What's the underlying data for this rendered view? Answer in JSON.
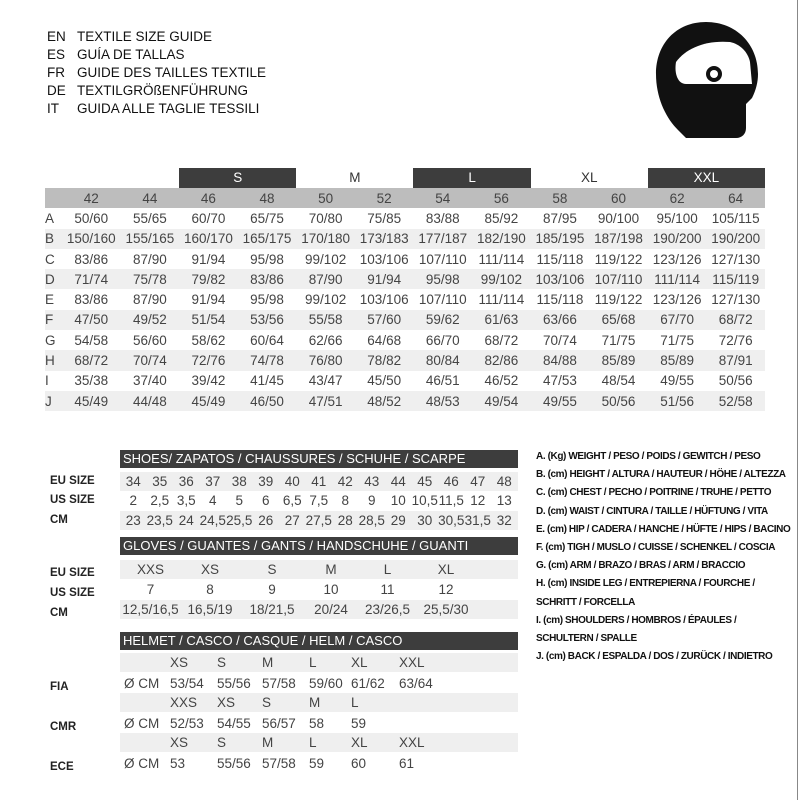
{
  "titles": [
    {
      "lang": "EN",
      "text": "TEXTILE SIZE GUIDE"
    },
    {
      "lang": "ES",
      "text": "GUÍA DE TALLAS"
    },
    {
      "lang": "FR",
      "text": "GUIDE DES TAILLES TEXTILE"
    },
    {
      "lang": "DE",
      "text": "TEXTILGRÖßENFÜHRUNG"
    },
    {
      "lang": "IT",
      "text": "GUIDA ALLE TAGLIE TESSILI"
    }
  ],
  "icon": "helmet-icon",
  "textile": {
    "groups": [
      "S",
      "M",
      "L",
      "XL",
      "XXL"
    ],
    "sizes": [
      "42",
      "44",
      "46",
      "48",
      "50",
      "52",
      "54",
      "56",
      "58",
      "60",
      "62",
      "64"
    ],
    "rows": [
      {
        "k": "A",
        "v": [
          "50/60",
          "55/65",
          "60/70",
          "65/75",
          "70/80",
          "75/85",
          "83/88",
          "85/92",
          "87/95",
          "90/100",
          "95/100",
          "105/115"
        ]
      },
      {
        "k": "B",
        "v": [
          "150/160",
          "155/165",
          "160/170",
          "165/175",
          "170/180",
          "173/183",
          "177/187",
          "182/190",
          "185/195",
          "187/198",
          "190/200",
          "190/200"
        ]
      },
      {
        "k": "C",
        "v": [
          "83/86",
          "87/90",
          "91/94",
          "95/98",
          "99/102",
          "103/106",
          "107/110",
          "111/114",
          "115/118",
          "119/122",
          "123/126",
          "127/130"
        ]
      },
      {
        "k": "D",
        "v": [
          "71/74",
          "75/78",
          "79/82",
          "83/86",
          "87/90",
          "91/94",
          "95/98",
          "99/102",
          "103/106",
          "107/110",
          "111/114",
          "115/119"
        ]
      },
      {
        "k": "E",
        "v": [
          "83/86",
          "87/90",
          "91/94",
          "95/98",
          "99/102",
          "103/106",
          "107/110",
          "111/114",
          "115/118",
          "119/122",
          "123/126",
          "127/130"
        ]
      },
      {
        "k": "F",
        "v": [
          "47/50",
          "49/52",
          "51/54",
          "53/56",
          "55/58",
          "57/60",
          "59/62",
          "61/63",
          "63/66",
          "65/68",
          "67/70",
          "68/72"
        ]
      },
      {
        "k": "G",
        "v": [
          "54/58",
          "56/60",
          "58/62",
          "60/64",
          "62/66",
          "64/68",
          "66/70",
          "68/72",
          "70/74",
          "71/75",
          "71/75",
          "72/76"
        ]
      },
      {
        "k": "H",
        "v": [
          "68/72",
          "70/74",
          "72/76",
          "74/78",
          "76/80",
          "78/82",
          "80/84",
          "82/86",
          "84/88",
          "85/89",
          "85/89",
          "87/91"
        ]
      },
      {
        "k": "I",
        "v": [
          "35/38",
          "37/40",
          "39/42",
          "41/45",
          "43/47",
          "45/50",
          "46/51",
          "46/52",
          "47/53",
          "48/54",
          "49/55",
          "50/56"
        ]
      },
      {
        "k": "J",
        "v": [
          "45/49",
          "44/48",
          "45/49",
          "46/50",
          "47/51",
          "48/52",
          "48/53",
          "49/54",
          "49/55",
          "50/56",
          "51/56",
          "52/58"
        ]
      }
    ]
  },
  "shoes": {
    "title": "SHOES/ ZAPATOS / CHAUSSURES / SCHUHE / SCARPE",
    "rows": [
      {
        "label": "EU SIZE",
        "v": [
          "34",
          "35",
          "36",
          "37",
          "38",
          "39",
          "40",
          "41",
          "42",
          "43",
          "44",
          "45",
          "46",
          "47",
          "48"
        ]
      },
      {
        "label": "US SIZE",
        "v": [
          "2",
          "2,5",
          "3,5",
          "4",
          "5",
          "6",
          "6,5",
          "7,5",
          "8",
          "9",
          "10",
          "10,5",
          "11,5",
          "12",
          "13"
        ]
      },
      {
        "label": "CM",
        "v": [
          "23",
          "23,5",
          "24",
          "24,5",
          "25,5",
          "26",
          "27",
          "27,5",
          "28",
          "28,5",
          "29",
          "30",
          "30,5",
          "31,5",
          "32"
        ]
      }
    ]
  },
  "gloves": {
    "title": "GLOVES / GUANTES / GANTS / HANDSCHUHE / GUANTI",
    "rows": [
      {
        "label": "EU SIZE",
        "v": [
          "XXS",
          "XS",
          "S",
          "M",
          "L",
          "XL"
        ]
      },
      {
        "label": "US SIZE",
        "v": [
          "7",
          "8",
          "9",
          "10",
          "11",
          "12"
        ]
      },
      {
        "label": "CM",
        "v": [
          "12,5/16,5",
          "16,5/19",
          "18/21,5",
          "20/24",
          "23/26,5",
          "25,5/30"
        ]
      }
    ]
  },
  "helmet": {
    "title": "HELMET / CASCO / CASQUE / HELM / CASCO",
    "unit": "Ø CM",
    "rows": [
      {
        "label": "FIA",
        "sizes": [
          "XS",
          "S",
          "M",
          "L",
          "XL",
          "XXL"
        ],
        "cm": [
          "53/54",
          "55/56",
          "57/58",
          "59/60",
          "61/62",
          "63/64"
        ]
      },
      {
        "label": "CMR",
        "sizes": [
          "XXS",
          "XS",
          "S",
          "M",
          "L"
        ],
        "cm": [
          "52/53",
          "54/55",
          "56/57",
          "58",
          "59"
        ]
      },
      {
        "label": "ECE",
        "sizes": [
          "XS",
          "S",
          "M",
          "L",
          "XL",
          "XXL"
        ],
        "cm": [
          "53",
          "55/56",
          "57/58",
          "59",
          "60",
          "61"
        ]
      }
    ]
  },
  "legend": [
    "A. (Kg) WEIGHT / PESO / POIDS / GEWITCH / PESO",
    "B. (cm) HEIGHT / ALTURA / HAUTEUR / HÖHE / ALTEZZA",
    "C. (cm) CHEST / PECHO / POITRINE / TRUHE / PETTO",
    "D. (cm) WAIST / CINTURA / TAILLE / HÜFTUNG / VITA",
    "E. (cm) HIP / CADERA / HANCHE / HÜFTE / HIPS /  BACINO",
    "F. (cm) TIGH / MUSLO / CUISSE / SCHENKEL / COSCIA",
    "G. (cm) ARM  / BRAZO / BRAS / ARM / BRACCIO",
    "H. (cm) INSIDE LEG / ENTREPIERNA / FOURCHE /",
    "SCHRITT / FORCELLA",
    "I. (cm) SHOULDERS / HOMBROS / ÉPAULES /",
    "SCHULTERN / SPALLE",
    "J. (cm) BACK / ESPALDA / DOS / ZURÜCK / INDIETRO"
  ]
}
